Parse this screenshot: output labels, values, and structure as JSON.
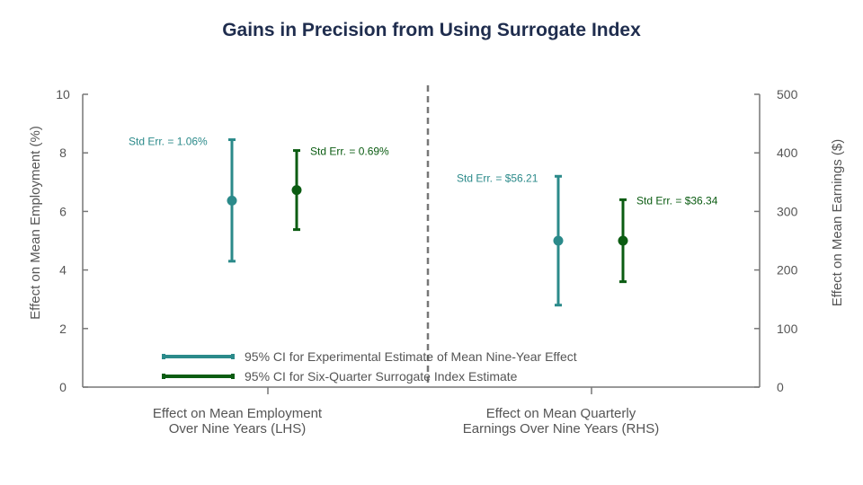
{
  "chart_data": {
    "type": "scatter",
    "title": "Gains in Precision from Using Surrogate Index",
    "left_axis": {
      "label": "Effect on Mean Employment (%)",
      "ticks": [
        "0",
        "2",
        "4",
        "6",
        "8",
        "10"
      ],
      "range": [
        0,
        10
      ]
    },
    "right_axis": {
      "label": "Effect on Mean Earnings ($)",
      "ticks": [
        "0",
        "100",
        "200",
        "300",
        "400",
        "500"
      ],
      "range": [
        0,
        500
      ]
    },
    "categories": [
      "Effect on Mean Employment Over Nine Years (LHS)",
      "Effect on Mean Quarterly Earnings Over Nine Years (RHS)"
    ],
    "category_lines": [
      [
        "Effect on Mean Employment",
        "Over Nine Years (LHS)"
      ],
      [
        "Effect on Mean Quarterly",
        "Earnings Over Nine Years (RHS)"
      ]
    ],
    "colors": {
      "experimental": "#2b8a8a",
      "surrogate": "#0b5c12",
      "axis": "#777777"
    },
    "series": [
      {
        "name": "95% CI for Experimental Estimate of Mean Nine-Year Effect",
        "color": "#2b8a8a",
        "points": [
          {
            "category": 0,
            "axis": "left",
            "estimate": 6.37,
            "ci": [
              4.3,
              8.45
            ],
            "annotation": "Std Err. = 1.06%"
          },
          {
            "category": 1,
            "axis": "right",
            "estimate": 250,
            "ci": [
              140,
              360
            ],
            "annotation": "Std Err. = $56.21"
          }
        ]
      },
      {
        "name": "95% CI for Six-Quarter Surrogate Index Estimate",
        "color": "#0b5c12",
        "points": [
          {
            "category": 0,
            "axis": "left",
            "estimate": 6.73,
            "ci": [
              5.38,
              8.08
            ],
            "annotation": "Std Err. = 0.69%"
          },
          {
            "category": 1,
            "axis": "right",
            "estimate": 250,
            "ci": [
              180,
              320
            ],
            "annotation": "Std Err. = $36.34"
          }
        ]
      }
    ],
    "legend_placement": "bottom-center",
    "divider": "dashed vertical line between categories"
  }
}
